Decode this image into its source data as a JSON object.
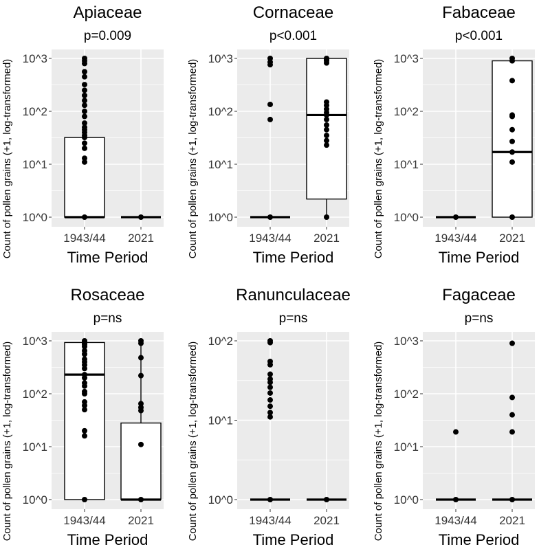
{
  "chart_data": [
    {
      "type": "box",
      "title": "Apiaceae",
      "subtitle": "p=0.009",
      "xlabel": "Time Period",
      "ylabel": "Count of pollen grains (+1, log-transformed)",
      "categories": [
        "1943/44",
        "2021"
      ],
      "yscale": "log10",
      "ylim_exp": [
        0,
        3
      ],
      "yticks": [
        0,
        1,
        2,
        3
      ],
      "ytick_labels": [
        "10^0",
        "10^1",
        "10^2",
        "10^3"
      ],
      "boxes": [
        {
          "category": "1943/44",
          "q1": 1,
          "median": 1,
          "q3": 32,
          "whisker_low": 1,
          "whisker_high": 32
        },
        {
          "category": "2021",
          "q1": 1,
          "median": 1,
          "q3": 1,
          "whisker_low": 1,
          "whisker_high": 1
        }
      ],
      "points": [
        {
          "category": "1943/44",
          "values": [
            1000,
            900,
            800,
            560,
            450,
            320,
            250,
            200,
            160,
            130,
            100,
            80,
            60,
            50,
            45,
            40,
            35,
            32,
            25,
            20,
            13,
            11,
            1
          ]
        },
        {
          "category": "2021",
          "values": [
            1
          ]
        }
      ]
    },
    {
      "type": "box",
      "title": "Cornaceae",
      "subtitle": "p<0.001",
      "xlabel": "Time Period",
      "ylabel": "Count of pollen grains (+1, log-transformed)",
      "categories": [
        "1943/44",
        "2021"
      ],
      "yscale": "log10",
      "ylim_exp": [
        0,
        3
      ],
      "yticks": [
        0,
        1,
        2,
        3
      ],
      "ytick_labels": [
        "10^0",
        "10^1",
        "10^2",
        "10^3"
      ],
      "boxes": [
        {
          "category": "1943/44",
          "q1": 1,
          "median": 1,
          "q3": 1,
          "whisker_low": 1,
          "whisker_high": 1
        },
        {
          "category": "2021",
          "q1": 2.2,
          "median": 85,
          "q3": 1000,
          "whisker_low": 1,
          "whisker_high": 1000
        }
      ],
      "points": [
        {
          "category": "1943/44",
          "values": [
            1000,
            850,
            760,
            135,
            70,
            1
          ]
        },
        {
          "category": "2021",
          "values": [
            1000,
            950,
            900,
            820,
            150,
            130,
            110,
            95,
            85,
            70,
            55,
            45,
            35,
            28,
            23,
            1
          ]
        }
      ]
    },
    {
      "type": "box",
      "title": "Fabaceae",
      "subtitle": "p<0.001",
      "xlabel": "Time Period",
      "ylabel": "Count of pollen grains (+1, log-transformed)",
      "categories": [
        "1943/44",
        "2021"
      ],
      "yscale": "log10",
      "ylim_exp": [
        0,
        3
      ],
      "yticks": [
        0,
        1,
        2,
        3
      ],
      "ytick_labels": [
        "10^0",
        "10^1",
        "10^2",
        "10^3"
      ],
      "boxes": [
        {
          "category": "1943/44",
          "q1": 1,
          "median": 1,
          "q3": 1,
          "whisker_low": 1,
          "whisker_high": 1
        },
        {
          "category": "2021",
          "q1": 1,
          "median": 17,
          "q3": 900,
          "whisker_low": 1,
          "whisker_high": 1000
        }
      ],
      "points": [
        {
          "category": "1943/44",
          "values": [
            1
          ]
        },
        {
          "category": "2021",
          "values": [
            1000,
            900,
            380,
            85,
            80,
            45,
            27,
            17,
            11,
            1
          ]
        }
      ]
    },
    {
      "type": "box",
      "title": "Rosaceae",
      "subtitle": "p=ns",
      "xlabel": "Time Period",
      "ylabel": "Count of pollen grains (+1, log-transformed)",
      "categories": [
        "1943/44",
        "2021"
      ],
      "yscale": "log10",
      "ylim_exp": [
        0,
        3
      ],
      "yticks": [
        0,
        1,
        2,
        3
      ],
      "ytick_labels": [
        "10^0",
        "10^1",
        "10^2",
        "10^3"
      ],
      "boxes": [
        {
          "category": "1943/44",
          "q1": 1,
          "median": 230,
          "q3": 930,
          "whisker_low": 1,
          "whisker_high": 1000
        },
        {
          "category": "2021",
          "q1": 1,
          "median": 1,
          "q3": 28,
          "whisker_low": 1,
          "whisker_high": 1000
        }
      ],
      "points": [
        {
          "category": "1943/44",
          "values": [
            1000,
            950,
            900,
            850,
            780,
            650,
            560,
            450,
            400,
            350,
            300,
            230,
            200,
            160,
            140,
            110,
            100,
            70,
            60,
            50,
            20,
            16,
            1
          ]
        },
        {
          "category": "2021",
          "values": [
            1000,
            900,
            480,
            220,
            65,
            55,
            48,
            11,
            1
          ]
        }
      ]
    },
    {
      "type": "box",
      "title": "Ranunculaceae",
      "subtitle": "p=ns",
      "xlabel": "Time Period",
      "ylabel": "Count of pollen grains (+1, log-transformed)",
      "categories": [
        "1943/44",
        "2021"
      ],
      "yscale": "log10",
      "ylim_exp": [
        0,
        2
      ],
      "yticks": [
        0,
        1,
        2
      ],
      "ytick_labels": [
        "10^0",
        "10^1",
        "10^2"
      ],
      "boxes": [
        {
          "category": "1943/44",
          "q1": 1,
          "median": 1,
          "q3": 1,
          "whisker_low": 1,
          "whisker_high": 1
        },
        {
          "category": "2021",
          "q1": 1,
          "median": 1,
          "q3": 1,
          "whisker_low": 1,
          "whisker_high": 1
        }
      ],
      "points": [
        {
          "category": "1943/44",
          "values": [
            100,
            95,
            55,
            50,
            38,
            33,
            30,
            26,
            22,
            18,
            15,
            12.5,
            11,
            1
          ]
        },
        {
          "category": "2021",
          "values": [
            1
          ]
        }
      ]
    },
    {
      "type": "box",
      "title": "Fagaceae",
      "subtitle": "p=ns",
      "xlabel": "Time Period",
      "ylabel": "Count of pollen grains (+1, log-transformed)",
      "categories": [
        "1943/44",
        "2021"
      ],
      "yscale": "log10",
      "ylim_exp": [
        0,
        3
      ],
      "yticks": [
        0,
        1,
        2,
        3
      ],
      "ytick_labels": [
        "10^0",
        "10^1",
        "10^2",
        "10^3"
      ],
      "boxes": [
        {
          "category": "1943/44",
          "q1": 1,
          "median": 1,
          "q3": 1,
          "whisker_low": 1,
          "whisker_high": 1
        },
        {
          "category": "2021",
          "q1": 1,
          "median": 1,
          "q3": 1,
          "whisker_low": 1,
          "whisker_high": 1
        }
      ],
      "points": [
        {
          "category": "1943/44",
          "values": [
            19,
            1
          ]
        },
        {
          "category": "2021",
          "values": [
            900,
            85,
            40,
            19,
            1
          ]
        }
      ]
    }
  ],
  "colors": {
    "panel_background": "#ebebeb",
    "gridline": "#ffffff",
    "box_fill": "#ffffff",
    "box_outline": "#000000",
    "point": "#000000",
    "tick_text": "#333333"
  }
}
